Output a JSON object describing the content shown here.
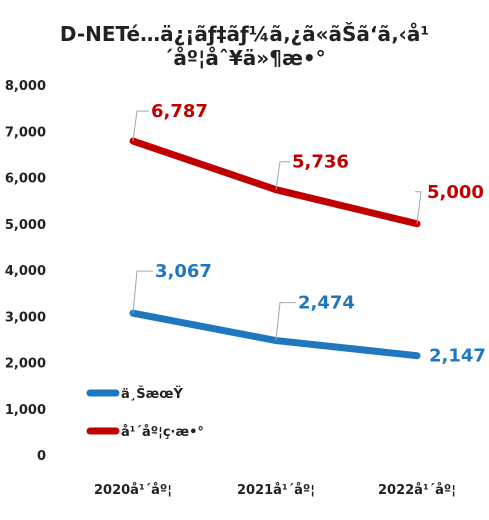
{
  "chart_data": {
    "type": "line",
    "title": "D-NETé…ä¿¡ãƒ‡ãƒ¼ã‚¿ã«ãŠã‘ã‚‹å¹´åº¦åˆ¥ä»¶æ•°",
    "categories": [
      "2020å¹´åº¦",
      "2021å¹´åº¦",
      "2022å¹´åº¦"
    ],
    "series": [
      {
        "name": "ä¸ŠæœŸ",
        "values": [
          3067,
          2474,
          2147
        ],
        "color": "#1F77C0"
      },
      {
        "name": "å¹´åº¦ç·æ•°",
        "values": [
          6787,
          5736,
          5000
        ],
        "color": "#C00000"
      }
    ],
    "data_labels": [
      [
        "3,067",
        "2,474",
        "2,147"
      ],
      [
        "6,787",
        "5,736",
        "5,000"
      ]
    ],
    "y_ticks": [
      "0",
      "1,000",
      "2,000",
      "3,000",
      "4,000",
      "5,000",
      "6,000",
      "7,000",
      "8,000"
    ],
    "ylim": [
      0,
      8000
    ],
    "grid": false,
    "legend_position": "bottom-left",
    "xlabel": "",
    "ylabel": ""
  }
}
